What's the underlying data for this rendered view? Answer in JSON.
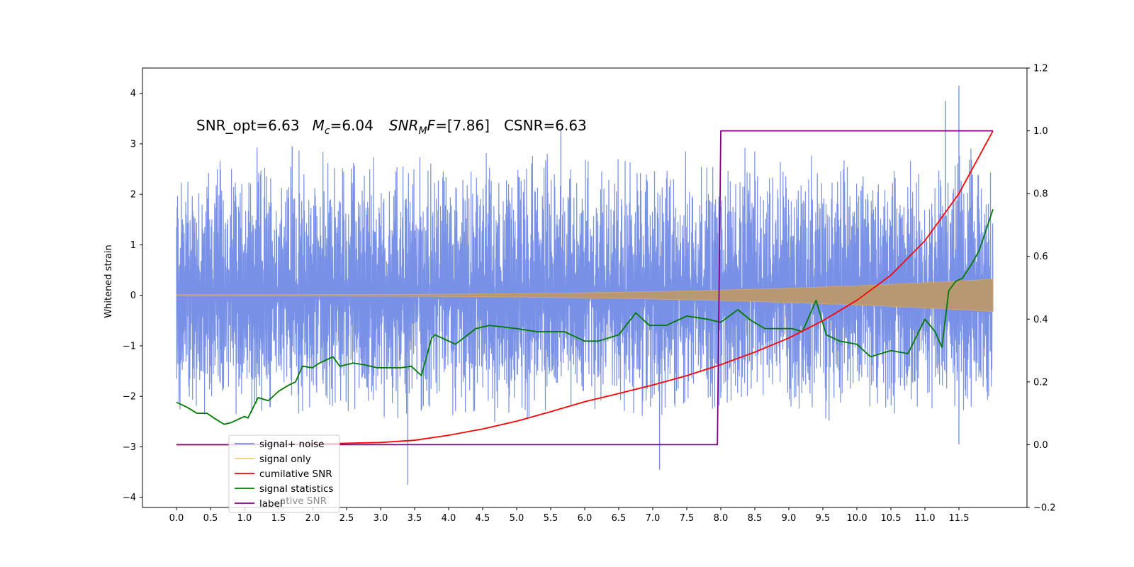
{
  "chart_data": {
    "type": "line",
    "annotation": {
      "snr_opt": "SNR_opt=6.63",
      "mc_sym": "M",
      "mc_sub": "c",
      "mc_val": "=6.04",
      "mf_sym": "SNR",
      "mf_sub": "M",
      "mf_f": "F",
      "mf_val": "=[7.86]",
      "csnr": "CSNR=6.63"
    },
    "ylabel": "Whitened strain",
    "xlim": [
      -0.5,
      12.5
    ],
    "ylim": [
      -4.2,
      4.5
    ],
    "y2lim": [
      -0.2,
      1.2
    ],
    "xticks": [
      "0.0",
      "0.5",
      "1.0",
      "1.5",
      "2.0",
      "2.5",
      "3.0",
      "3.5",
      "4.0",
      "4.5",
      "5.0",
      "5.5",
      "6.0",
      "6.5",
      "7.0",
      "7.5",
      "8.0",
      "8.5",
      "9.0",
      "9.5",
      "10.0",
      "10.5",
      "11.0",
      "11.5"
    ],
    "yticks": [
      "4",
      "3",
      "2",
      "1",
      "0",
      "−1",
      "−2",
      "−3",
      "−4"
    ],
    "y2ticks": [
      "1.2",
      "1.0",
      "0.8",
      "0.6",
      "0.4",
      "0.2",
      "0.0",
      "−0.2"
    ],
    "legend": {
      "placement": "lower left",
      "entries": [
        {
          "label": "signal+ noise",
          "color": "#7890e6"
        },
        {
          "label": "signal only",
          "color": "#ffc870"
        },
        {
          "label": "cumilative SNR",
          "color": "#ff0000"
        },
        {
          "label": "signal statistics",
          "color": "#007a00"
        },
        {
          "label": "label",
          "color": "#800080"
        }
      ],
      "overlap_text": "ative SNR"
    },
    "series": [
      {
        "name": "signal+ noise",
        "axis": "left",
        "style": "noise",
        "x_range": [
          0,
          12
        ],
        "band_peak": [
          -2.6,
          3.0
        ],
        "outliers": [
          [
            1.7,
            2.95
          ],
          [
            3.4,
            -3.75
          ],
          [
            5.65,
            3.3
          ],
          [
            7.1,
            -3.45
          ],
          [
            11.3,
            3.85
          ],
          [
            11.5,
            4.15
          ],
          [
            11.5,
            -2.95
          ]
        ]
      },
      {
        "name": "signal only",
        "axis": "left",
        "style": "chirp",
        "x_range": [
          0,
          12
        ],
        "amplitude_end": 0.32
      },
      {
        "name": "cumilative SNR",
        "axis": "right",
        "x": [
          0.0,
          1.0,
          2.0,
          3.0,
          3.5,
          4.0,
          4.5,
          5.0,
          5.5,
          6.0,
          6.5,
          7.0,
          7.5,
          8.0,
          8.5,
          9.0,
          9.5,
          10.0,
          10.5,
          11.0,
          11.5,
          11.9,
          12.0
        ],
        "y": [
          0.0,
          0.0,
          0.002,
          0.007,
          0.014,
          0.03,
          0.05,
          0.075,
          0.105,
          0.137,
          0.163,
          0.19,
          0.22,
          0.255,
          0.295,
          0.34,
          0.395,
          0.46,
          0.54,
          0.65,
          0.8,
          0.96,
          1.0
        ]
      },
      {
        "name": "signal statistics",
        "axis": "right",
        "x": [
          0.0,
          0.15,
          0.3,
          0.45,
          0.55,
          0.7,
          0.8,
          1.0,
          1.05,
          1.2,
          1.35,
          1.5,
          1.65,
          1.75,
          1.85,
          2.0,
          2.1,
          2.3,
          2.4,
          2.6,
          2.75,
          2.95,
          3.1,
          3.3,
          3.45,
          3.6,
          3.75,
          3.8,
          4.1,
          4.4,
          4.6,
          4.8,
          5.0,
          5.3,
          5.7,
          6.0,
          6.2,
          6.5,
          6.75,
          6.95,
          7.2,
          7.5,
          7.8,
          8.0,
          8.25,
          8.45,
          8.65,
          8.85,
          9.05,
          9.2,
          9.4,
          9.55,
          9.75,
          10.0,
          10.2,
          10.5,
          10.75,
          11.0,
          11.15,
          11.25,
          11.35,
          11.45,
          11.55,
          11.7,
          11.8,
          12.0
        ],
        "y": [
          0.135,
          0.12,
          0.1,
          0.1,
          0.085,
          0.065,
          0.07,
          0.09,
          0.085,
          0.15,
          0.14,
          0.17,
          0.19,
          0.2,
          0.25,
          0.245,
          0.26,
          0.28,
          0.25,
          0.26,
          0.255,
          0.245,
          0.245,
          0.245,
          0.25,
          0.22,
          0.34,
          0.35,
          0.32,
          0.37,
          0.38,
          0.375,
          0.37,
          0.36,
          0.36,
          0.33,
          0.33,
          0.35,
          0.42,
          0.38,
          0.38,
          0.41,
          0.4,
          0.39,
          0.43,
          0.395,
          0.37,
          0.37,
          0.37,
          0.36,
          0.46,
          0.35,
          0.33,
          0.32,
          0.28,
          0.3,
          0.29,
          0.4,
          0.36,
          0.31,
          0.49,
          0.52,
          0.53,
          0.58,
          0.62,
          0.75
        ]
      },
      {
        "name": "label",
        "axis": "right",
        "x": [
          0.0,
          7.95,
          8.0,
          12.0
        ],
        "y": [
          0.0,
          0.0,
          1.0,
          1.0
        ]
      }
    ]
  }
}
